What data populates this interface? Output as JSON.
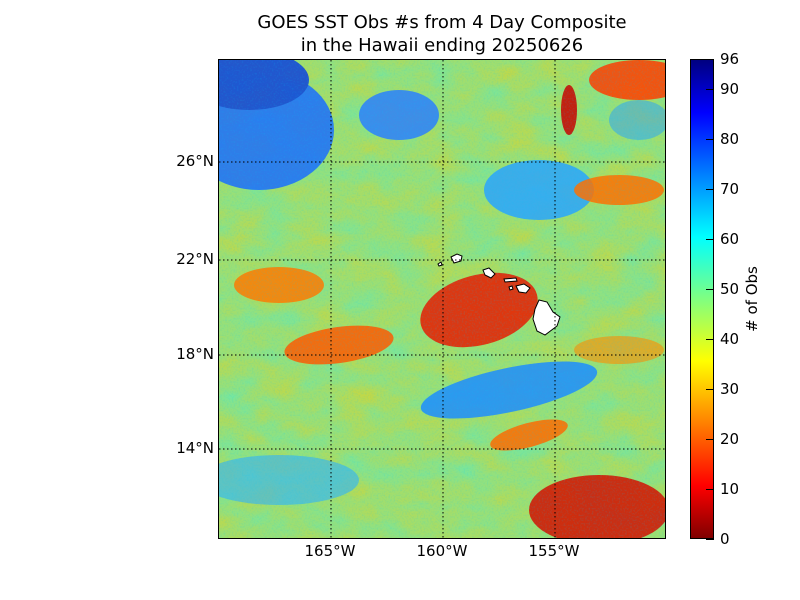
{
  "title": {
    "line1": "GOES SST Obs #s from 4 Day Composite",
    "line2": "in the Hawaii ending 20250626"
  },
  "map": {
    "lat_labels": [
      "26°N",
      "22°N",
      "18°N",
      "14°N"
    ],
    "lon_labels": [
      "165°W",
      "160°W",
      "155°W"
    ],
    "lat_range": [
      10.0,
      30.0
    ],
    "lon_range": [
      -170.0,
      -150.0
    ],
    "gridlines": "dotted",
    "land_color": "#ffffff"
  },
  "colorbar": {
    "label": "# of Obs",
    "range": [
      0,
      96
    ],
    "ticks": [
      "0",
      "10",
      "20",
      "30",
      "40",
      "50",
      "60",
      "70",
      "80",
      "90",
      "96"
    ],
    "colormap": "jet_reversed"
  }
}
